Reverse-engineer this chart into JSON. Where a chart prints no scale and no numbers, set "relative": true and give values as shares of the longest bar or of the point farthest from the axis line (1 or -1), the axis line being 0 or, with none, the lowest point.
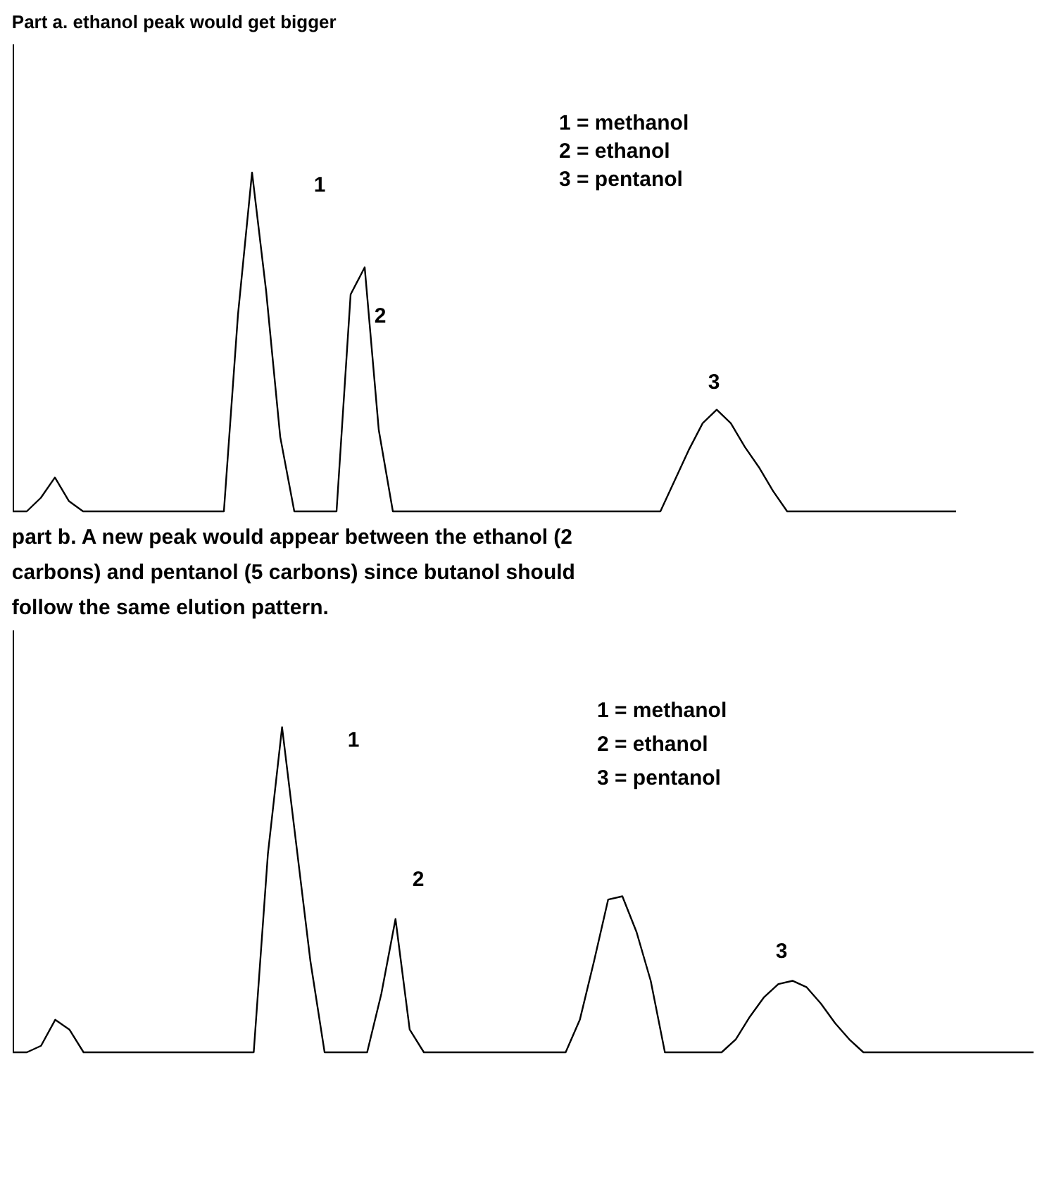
{
  "chart_data": [
    {
      "type": "line",
      "relative": true,
      "title": "Part a.  ethanol peak would get bigger",
      "categories": [
        null,
        null,
        null,
        null,
        null,
        null,
        null,
        null,
        null,
        null,
        null,
        null,
        null,
        null,
        null,
        null,
        null,
        null,
        null,
        null,
        null,
        null,
        null,
        null,
        null,
        null,
        null,
        null,
        null,
        null,
        null,
        null,
        null,
        null,
        null,
        null,
        null,
        null,
        null,
        null,
        null,
        null,
        null,
        null,
        null,
        null,
        null,
        null,
        null,
        null,
        null,
        null,
        null,
        null,
        null,
        null,
        null,
        null,
        null,
        null,
        null,
        null,
        null,
        null,
        null,
        null,
        null,
        null
      ],
      "series": [
        {
          "color": "#000000",
          "values": [
            0,
            0,
            0.04,
            0.1,
            0.03,
            0,
            0,
            0,
            0,
            0,
            0,
            0,
            0,
            0,
            0,
            0,
            0.58,
            1,
            0.65,
            0.22,
            0,
            0,
            0,
            0,
            0.64,
            0.72,
            0.24,
            0,
            0,
            0,
            0,
            0,
            0,
            0,
            0,
            0,
            0,
            0,
            0,
            0,
            0,
            0,
            0,
            0,
            0,
            0,
            0,
            0.09,
            0.18,
            0.26,
            0.3,
            0.26,
            0.19,
            0.13,
            0.06,
            0,
            0,
            0,
            0,
            0,
            0,
            0,
            0,
            0,
            0,
            0,
            0,
            0
          ]
        }
      ],
      "annotations": [
        "1",
        "2",
        "3",
        "1 = methanol",
        "2 = ethanol",
        "3 = pentanol"
      ]
    },
    {
      "type": "line",
      "relative": true,
      "title": "part b.  A new peak would appear between the ethanol (2 carbons) and pentanol (5 carbons) since butanol should follow the same elution pattern.",
      "categories": [
        null,
        null,
        null,
        null,
        null,
        null,
        null,
        null,
        null,
        null,
        null,
        null,
        null,
        null,
        null,
        null,
        null,
        null,
        null,
        null,
        null,
        null,
        null,
        null,
        null,
        null,
        null,
        null,
        null,
        null,
        null,
        null,
        null,
        null,
        null,
        null,
        null,
        null,
        null,
        null,
        null,
        null,
        null,
        null,
        null,
        null,
        null,
        null,
        null,
        null,
        null,
        null,
        null,
        null,
        null,
        null,
        null,
        null,
        null,
        null,
        null,
        null,
        null,
        null,
        null,
        null,
        null,
        null,
        null,
        null,
        null,
        null,
        null
      ],
      "series": [
        {
          "color": "#000000",
          "values": [
            0,
            0,
            0.02,
            0.1,
            0.07,
            0,
            0,
            0,
            0,
            0,
            0,
            0,
            0,
            0,
            0,
            0,
            0,
            0,
            0.61,
            1,
            0.64,
            0.28,
            0,
            0,
            0,
            0,
            0.18,
            0.41,
            0.07,
            0,
            0,
            0,
            0,
            0,
            0,
            0,
            0,
            0,
            0,
            0,
            0.1,
            0.28,
            0.47,
            0.48,
            0.37,
            0.22,
            0,
            0,
            0,
            0,
            0,
            0.04,
            0.11,
            0.17,
            0.21,
            0.22,
            0.2,
            0.15,
            0.09,
            0.04,
            0,
            0,
            0,
            0,
            0,
            0,
            0,
            0,
            0,
            0,
            0,
            0,
            0
          ]
        }
      ],
      "annotations": [
        "1",
        "2",
        "3",
        "1 = methanol",
        "2 = ethanol",
        "3 = pentanol"
      ]
    }
  ]
}
